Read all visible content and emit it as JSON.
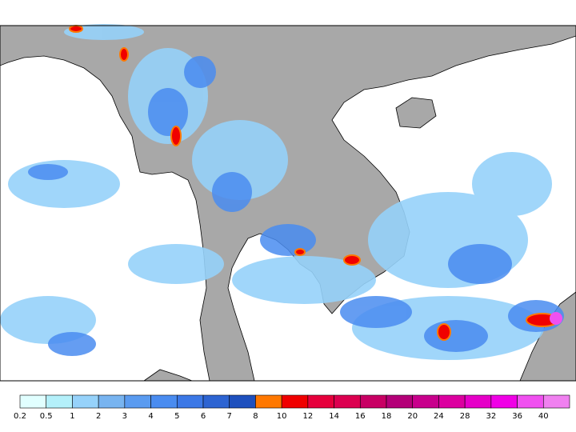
{
  "legend": {
    "labels": [
      0.2,
      0.5,
      1,
      2,
      3,
      4,
      5,
      6,
      7,
      8,
      10,
      12,
      14,
      16,
      18,
      20,
      24,
      28,
      32,
      36,
      40
    ],
    "colors": [
      "#e1ffff",
      "#b4f0fa",
      "#96d2fa",
      "#78b4f0",
      "#5a9bf0",
      "#4a8cf0",
      "#3c78e6",
      "#2d64d2",
      "#1e50be",
      "#ff7800",
      "#f00000",
      "#e6003c",
      "#dc0050",
      "#c80064",
      "#b40078",
      "#c8008c",
      "#dc00a0",
      "#e600c8",
      "#f000e6",
      "#f050f0",
      "#f080f0"
    ]
  }
}
